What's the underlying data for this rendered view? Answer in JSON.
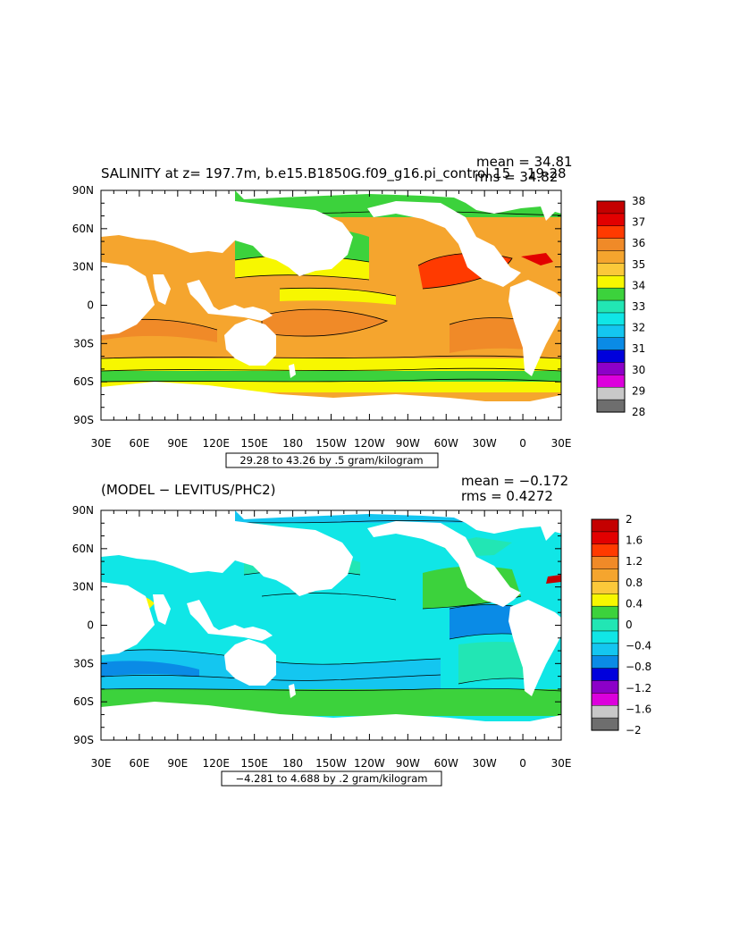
{
  "panels": [
    {
      "title": "SALINITY at z= 197.7m, b.e15.B1850G.f09_g16.pi_control.15 ",
      "title_overprint": "19-28",
      "mean_label": "mean = 34.81",
      "rms_label": "rms = 34.82",
      "contour_info": "29.28 to 43.26 by .5 gram/kilogram",
      "colorbar": {
        "labels": [
          "38",
          "37",
          "36",
          "35",
          "34",
          "33",
          "32",
          "31",
          "30",
          "29",
          "28"
        ],
        "colors": [
          "#c40000",
          "#e20000",
          "#ff3a00",
          "#f08a28",
          "#f5a52e",
          "#fbc93a",
          "#f7f700",
          "#3cd23c",
          "#22e6b4",
          "#10e6e6",
          "#14c6f0",
          "#0a8be6",
          "#0000dc",
          "#8c00c8",
          "#dc00dc",
          "#c8c8c8",
          "#6e6e6e"
        ]
      }
    },
    {
      "title": "(MODEL − LEVITUS/PHC2)",
      "mean_label": "mean = −0.172",
      "rms_label": "rms = 0.4272",
      "contour_info": "−4.281 to 4.688 by .2 gram/kilogram",
      "colorbar": {
        "labels": [
          "2",
          "1.6",
          "1.2",
          "0.8",
          "0.4",
          "0",
          "−0.4",
          "−0.8",
          "−1.2",
          "−1.6",
          "−2"
        ],
        "colors": [
          "#c40000",
          "#e20000",
          "#ff3a00",
          "#f08a28",
          "#f5a52e",
          "#fbc93a",
          "#f7f700",
          "#3cd23c",
          "#22e6b4",
          "#10e6e6",
          "#14c6f0",
          "#0a8be6",
          "#0000dc",
          "#8c00c8",
          "#dc00dc",
          "#c8c8c8",
          "#6e6e6e"
        ]
      }
    }
  ],
  "axes": {
    "lat_labels": [
      "90N",
      "60N",
      "30N",
      "0",
      "30S",
      "60S",
      "90S"
    ],
    "lon_labels": [
      "30E",
      "60E",
      "90E",
      "120E",
      "150E",
      "180",
      "150W",
      "120W",
      "90W",
      "60W",
      "30W",
      "0",
      "30E"
    ]
  },
  "map_colors": {
    "ocean_mid": "#f5a52e",
    "ocean_high": "#f08a28",
    "ocean_max": "#ff3a00",
    "ocean_low": "#f7f700",
    "ocean_fresh": "#3cd23c",
    "diff_base": "#10e6e6",
    "diff_neg": "#14c6f0",
    "diff_more_neg": "#0a8be6",
    "diff_pos": "#3cd23c",
    "diff_pos2": "#22e6b4"
  }
}
